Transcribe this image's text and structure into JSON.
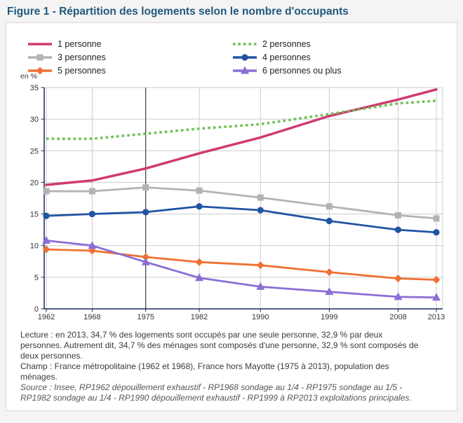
{
  "page": {
    "title": "Figure 1 - Répartition des logements selon le nombre d'occupants"
  },
  "chart_data": {
    "type": "line",
    "title": "Figure 1 - Répartition des logements selon le nombre d'occupants",
    "unit_label": "en %",
    "x": [
      1962,
      1968,
      1975,
      1982,
      1990,
      1999,
      2008,
      2013
    ],
    "x_tick_labels": [
      "1962",
      "1968",
      "1975",
      "1982",
      "1990",
      "1999",
      "2008",
      "2013"
    ],
    "ylim": [
      0,
      35
    ],
    "y_ticks": [
      0,
      5,
      10,
      15,
      20,
      25,
      30,
      35
    ],
    "grid": true,
    "legend_position": "top",
    "reference_line_x": 1975,
    "series": [
      {
        "name": "1 personne",
        "color": "#cf3a6f",
        "style": "solid",
        "marker": "none",
        "values": [
          19.6,
          20.3,
          22.2,
          24.6,
          27.1,
          30.5,
          33.1,
          34.7
        ]
      },
      {
        "name": "2 personnes",
        "color": "#6abf51",
        "style": "dotted",
        "marker": "none",
        "values": [
          26.9,
          26.9,
          27.7,
          28.5,
          29.2,
          30.8,
          32.5,
          32.9
        ]
      },
      {
        "name": "3 personnes",
        "color": "#b3b3b3",
        "style": "solid",
        "marker": "square",
        "values": [
          18.6,
          18.6,
          19.2,
          18.7,
          17.6,
          16.2,
          14.8,
          14.3
        ]
      },
      {
        "name": "4 personnes",
        "color": "#2154a4",
        "style": "solid",
        "marker": "circle",
        "values": [
          14.7,
          15.0,
          15.3,
          16.2,
          15.6,
          13.9,
          12.5,
          12.1
        ]
      },
      {
        "name": "5 personnes",
        "color": "#ee7134",
        "style": "solid",
        "marker": "diamond",
        "values": [
          9.4,
          9.2,
          8.2,
          7.4,
          6.9,
          5.8,
          4.8,
          4.6
        ]
      },
      {
        "name": "6 personnes ou plus",
        "color": "#8a6ed6",
        "style": "solid",
        "marker": "triangle",
        "values": [
          10.8,
          10.0,
          7.4,
          4.9,
          3.5,
          2.7,
          1.9,
          1.8
        ]
      }
    ]
  },
  "notes": {
    "lecture": "Lecture : en 2013, 34,7 % des logements sont occupés par une seule personne, 32,9 % par deux personnes. Autrement dit, 34,7 % des ménages sont composés d'une personne, 32,9 % sont composés de deux personnes.",
    "champ": "Champ : France métropolitaine (1962 et 1968), France hors Mayotte (1975 à 2013), population des ménages.",
    "source": "Source : Insee, RP1962 dépouillement exhaustif - RP1968 sondage au 1/4 - RP1975 sondage au 1/5 - RP1982 sondage au 1/4 - RP1990 dépouillement exhaustif - RP1999 à RP2013 exploitations principales."
  },
  "colors": {
    "title": "#20597c",
    "axis": "#1c2a5e",
    "grid": "#cccccc",
    "tick_text": "#333333",
    "reference_line": "#222222",
    "page_bg": "#f4f4f4",
    "card_bg": "#ffffff",
    "card_border": "#d9d9d9",
    "notes_text": "#3a3a3a"
  }
}
